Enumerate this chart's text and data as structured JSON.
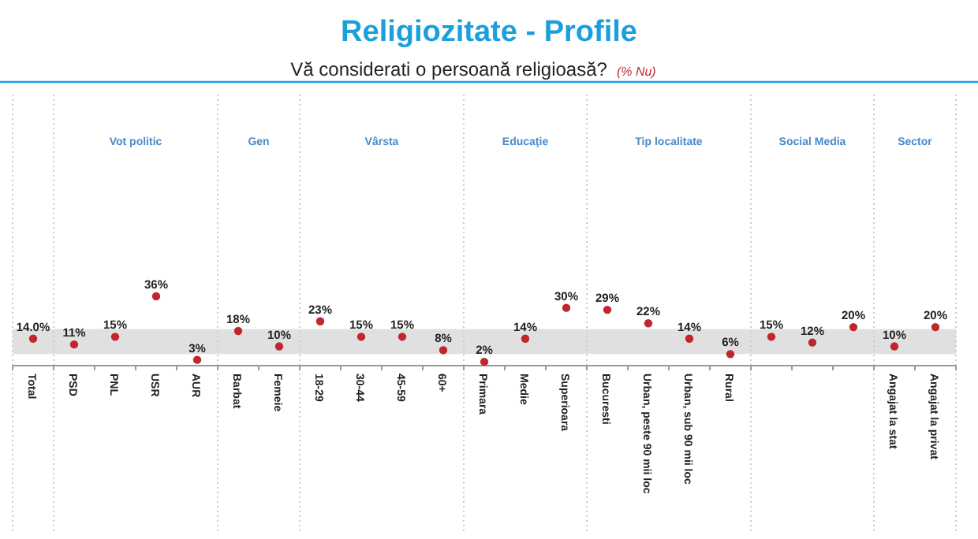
{
  "chart_data": {
    "type": "scatter",
    "title": "Religiozitate - Profile",
    "subtitle": "Vă considerati o persoană religioasă?",
    "annotations": [
      "(% Nu)",
      "Vot politic",
      "Gen",
      "Vârsta",
      "Educaţie",
      "Tip localitate",
      "Social Media",
      "Sector"
    ],
    "categories": [
      "Total",
      "PSD",
      "PNL",
      "USR",
      "AUR",
      "Barbat",
      "Femeie",
      "18-29",
      "30-44",
      "45-59",
      "60+",
      "Primara",
      "Medie",
      "Superioara",
      "Bucuresti",
      "Urban, peste 90 mii loc",
      "Urban, sub 90 mii loc",
      "Rural",
      null,
      null,
      null,
      "Angajat la stat",
      "Angajat la privat"
    ],
    "values": [
      14.0,
      11,
      15,
      36,
      3,
      18,
      10,
      23,
      15,
      15,
      8,
      2,
      14,
      30,
      29,
      22,
      14,
      6,
      15,
      12,
      20,
      10,
      20
    ],
    "value_labels": [
      "14.0%",
      "11%",
      "15%",
      "36%",
      "3%",
      "18%",
      "10%",
      "23%",
      "15%",
      "15%",
      "8%",
      "2%",
      "14%",
      "30%",
      "29%",
      "22%",
      "14%",
      "6%",
      "15%",
      "12%",
      "20%",
      "10%",
      "20%"
    ],
    "color": "#c0262d",
    "marker": "circle",
    "bands": [
      {
        "axis": "y",
        "from": 6,
        "to": 19,
        "color": "#e0e0e0"
      }
    ]
  }
}
